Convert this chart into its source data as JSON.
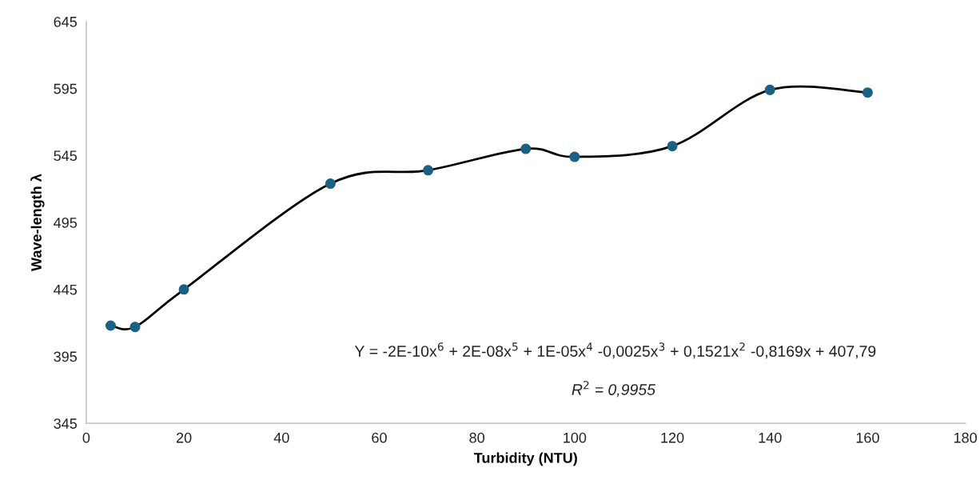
{
  "chart_data": {
    "type": "line",
    "xlabel": "Turbidity (NTU)",
    "ylabel": "Wave-length λ",
    "x": [
      5,
      10,
      20,
      50,
      70,
      90,
      100,
      120,
      140,
      160
    ],
    "series": [
      {
        "color": "#1a6285",
        "values": [
          418,
          417,
          445,
          524,
          534,
          550,
          544,
          552,
          594,
          592
        ]
      }
    ],
    "xlim": [
      0,
      180
    ],
    "xticks": [
      0,
      20,
      40,
      60,
      80,
      100,
      120,
      140,
      160,
      180
    ],
    "ylim": [
      345,
      645
    ],
    "yticks": [
      345,
      395,
      445,
      495,
      545,
      595,
      645
    ],
    "grid": false,
    "legend": false,
    "marker": "circle",
    "line_style": "solid",
    "annotations": [
      {
        "text": "Y = -2E-10x$^{6}$ + 2E-08x$^{5}$ + 1E-05x$^{4}$ -0,0025x$^{3}$ + 0,1521x$^{2}$ -0,8169x + 407,79"
      },
      {
        "text": "R$^{2}$ = 0,9955"
      }
    ]
  }
}
